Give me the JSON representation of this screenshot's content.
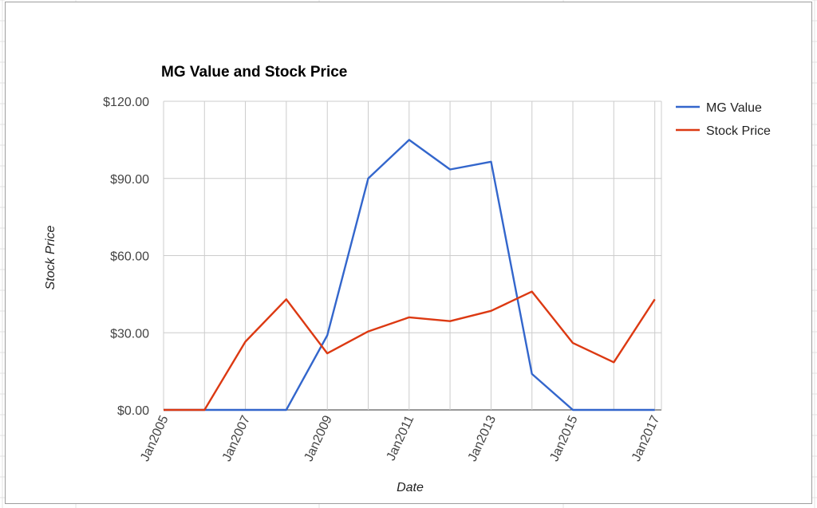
{
  "chart_data": {
    "type": "line",
    "title": "MG Value and Stock Price",
    "xlabel": "Date",
    "ylabel": "Stock Price",
    "x": [
      "2005-01-01",
      "2006-01-01",
      "2007-01-01",
      "2008-01-01",
      "2009-01-01",
      "2010-01-01",
      "2011-01-01",
      "2012-01-01",
      "2013-01-01",
      "2014-01-01",
      "2015-01-01",
      "2016-01-01",
      "2017-01-01"
    ],
    "x_ticks": [
      "Jan2005",
      "Jan2007",
      "Jan2009",
      "Jan2011",
      "Jan2013",
      "Jan2015",
      "Jan2017"
    ],
    "y_ticks": [
      "$0.00",
      "$30.00",
      "$60.00",
      "$90.00",
      "$120.00"
    ],
    "ylim": [
      0,
      120
    ],
    "grid": true,
    "legend": "right",
    "series": [
      {
        "name": "MG Value",
        "color": "#3366cc",
        "values": [
          0,
          0,
          0,
          0,
          29,
          90,
          105,
          93.5,
          96.5,
          14,
          0,
          0,
          0
        ]
      },
      {
        "name": "Stock Price",
        "color": "#dc3912",
        "values": [
          0,
          0,
          26.5,
          43,
          22,
          30.5,
          36,
          34.5,
          38.5,
          46,
          26,
          18.5,
          43
        ]
      }
    ]
  }
}
